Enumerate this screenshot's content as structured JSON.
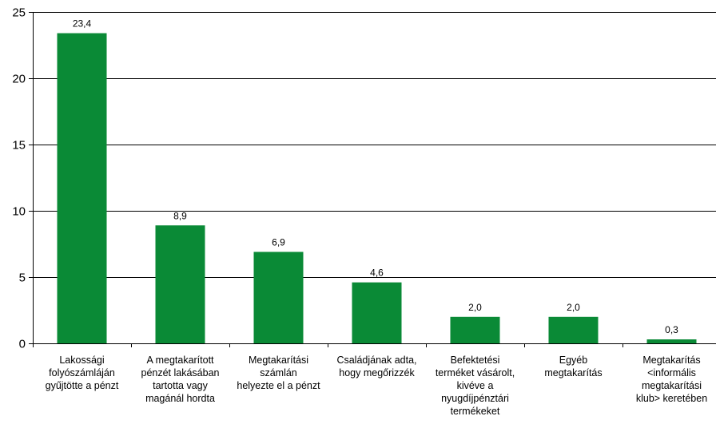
{
  "chart_data": {
    "type": "bar",
    "categories": [
      [
        "Lakossági",
        "folyószámláján",
        "gyűjtötte a pénzt"
      ],
      [
        "A megtakarított",
        "pénzét lakásában",
        "tartotta vagy",
        "magánál hordta"
      ],
      [
        "Megtakarítási",
        "számlán",
        "helyezte el a pénzt"
      ],
      [
        "Családjának adta,",
        "hogy megőrizzék"
      ],
      [
        "Befektetési",
        "terméket vásárolt,",
        "kivéve a",
        "nyugdíjpénztári",
        "termékeket"
      ],
      [
        "Egyéb",
        "megtakarítás"
      ],
      [
        "Megtakarítás",
        "<informális",
        "megtakarítási",
        "klub> keretében"
      ]
    ],
    "values": [
      23.4,
      8.9,
      6.9,
      4.6,
      2.0,
      2.0,
      0.3
    ],
    "data_labels": [
      "23,4",
      "8,9",
      "6,9",
      "4,6",
      "2,0",
      "2,0",
      "0,3"
    ],
    "y_ticks": [
      "0",
      "5",
      "10",
      "15",
      "20",
      "25"
    ],
    "ylim": [
      0,
      25
    ],
    "grid": true,
    "legend": "none",
    "bar_color": "#0a8a36",
    "title": "",
    "xlabel": "",
    "ylabel": ""
  }
}
